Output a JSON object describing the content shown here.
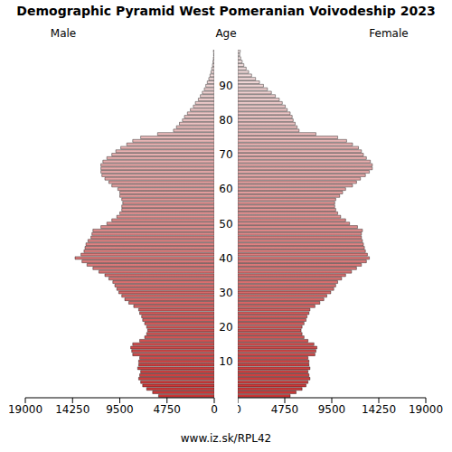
{
  "chart_data": {
    "type": "bar",
    "orientation": "horizontal",
    "title": "Demographic Pyramid West Pomeranian Voivodeship 2023",
    "y_label": "Age",
    "source": "www.iz.sk/RPL42",
    "categories": [
      null,
      null,
      null,
      null,
      null,
      null,
      null,
      null,
      null,
      null,
      "10",
      null,
      null,
      null,
      null,
      null,
      null,
      null,
      null,
      null,
      "20",
      null,
      null,
      null,
      null,
      null,
      null,
      null,
      null,
      null,
      "30",
      null,
      null,
      null,
      null,
      null,
      null,
      null,
      null,
      null,
      "40",
      null,
      null,
      null,
      null,
      null,
      null,
      null,
      null,
      null,
      "50",
      null,
      null,
      null,
      null,
      null,
      null,
      null,
      null,
      null,
      "60",
      null,
      null,
      null,
      null,
      null,
      null,
      null,
      null,
      null,
      "70",
      null,
      null,
      null,
      null,
      null,
      null,
      null,
      null,
      null,
      "80",
      null,
      null,
      null,
      null,
      null,
      null,
      null,
      null,
      null,
      "90",
      null,
      null,
      null,
      null,
      null,
      null,
      null,
      null,
      null,
      null
    ],
    "xlim": [
      0,
      19000
    ],
    "xticks": [
      0,
      4750,
      9500,
      14250,
      19000
    ],
    "series": [
      {
        "name": "Male",
        "color": "#cc3333",
        "values": [
          5600,
          6200,
          6800,
          7200,
          7400,
          7600,
          7500,
          7400,
          7700,
          7600,
          7600,
          7500,
          8200,
          8300,
          8400,
          8200,
          7500,
          7000,
          6800,
          6700,
          6800,
          7000,
          7200,
          7300,
          7500,
          7600,
          8100,
          8600,
          9000,
          9300,
          9600,
          9800,
          10000,
          10200,
          10600,
          11000,
          11600,
          12200,
          12800,
          13300,
          14000,
          13400,
          13100,
          13000,
          12900,
          12700,
          12400,
          12300,
          12200,
          11400,
          10800,
          10300,
          9800,
          9500,
          9300,
          9300,
          9200,
          9300,
          9500,
          9500,
          9700,
          10300,
          10600,
          11000,
          11300,
          11400,
          11400,
          11400,
          11200,
          10800,
          10300,
          9900,
          9400,
          8800,
          8200,
          7400,
          5700,
          4100,
          3800,
          3500,
          3200,
          3000,
          2700,
          2400,
          2100,
          1900,
          1600,
          1400,
          1200,
          1000,
          850,
          700,
          550,
          430,
          330,
          250,
          180,
          130,
          90,
          60,
          80
        ]
      },
      {
        "name": "Female",
        "color": "#cc3333",
        "values": [
          5300,
          5900,
          6500,
          6900,
          7100,
          7300,
          7200,
          7100,
          7300,
          7200,
          7200,
          7100,
          7800,
          7900,
          8000,
          7700,
          7100,
          6700,
          6500,
          6400,
          6500,
          6700,
          6900,
          7000,
          7200,
          7300,
          7800,
          8300,
          8700,
          9000,
          9400,
          9700,
          9900,
          10100,
          10500,
          10900,
          11500,
          12000,
          12500,
          13000,
          13300,
          13100,
          12900,
          12800,
          12700,
          12600,
          12500,
          12500,
          12600,
          12100,
          11300,
          10900,
          10400,
          10100,
          9900,
          9800,
          9800,
          9900,
          10300,
          10600,
          10900,
          11600,
          12000,
          12400,
          12900,
          13300,
          13600,
          13600,
          13400,
          13000,
          12700,
          12500,
          12200,
          11600,
          11000,
          10100,
          7900,
          6200,
          6000,
          5800,
          5600,
          5500,
          5300,
          5000,
          4800,
          4500,
          4200,
          3800,
          3400,
          3000,
          2600,
          2200,
          1800,
          1400,
          1100,
          850,
          620,
          450,
          300,
          200,
          250
        ]
      }
    ]
  }
}
